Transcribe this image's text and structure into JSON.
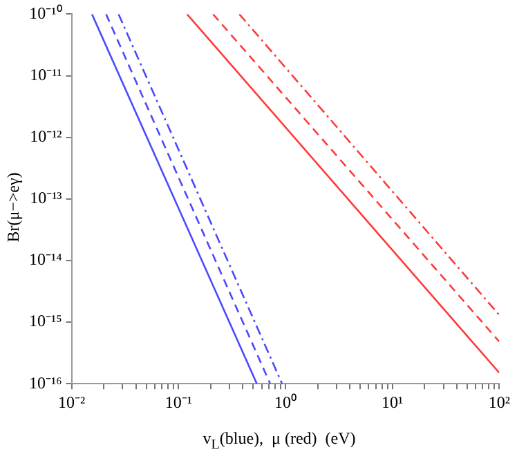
{
  "chart_data": {
    "type": "line",
    "xlabel": "v$_{L}$(blue),  μ (red)  (eV)",
    "ylabel": "Br(μ−>eγ)",
    "log": "xy",
    "grid": false,
    "legend": false,
    "marker": "none",
    "xlim": [
      0.01,
      100
    ],
    "ylim": [
      1e-16,
      1e-10
    ],
    "xticks": [
      {
        "value": 0.01,
        "label": "10⁻²"
      },
      {
        "value": 0.02,
        "label": null
      },
      {
        "value": 0.03,
        "label": null
      },
      {
        "value": 0.04,
        "label": null
      },
      {
        "value": 0.05,
        "label": null
      },
      {
        "value": 0.06,
        "label": null
      },
      {
        "value": 0.07,
        "label": null
      },
      {
        "value": 0.08,
        "label": null
      },
      {
        "value": 0.09,
        "label": null
      },
      {
        "value": 0.1,
        "label": "10⁻¹"
      },
      {
        "value": 0.2,
        "label": null
      },
      {
        "value": 0.3,
        "label": null
      },
      {
        "value": 0.4,
        "label": null
      },
      {
        "value": 0.5,
        "label": null
      },
      {
        "value": 0.6,
        "label": null
      },
      {
        "value": 0.7,
        "label": null
      },
      {
        "value": 0.8,
        "label": null
      },
      {
        "value": 0.9,
        "label": null
      },
      {
        "value": 1,
        "label": "10⁰"
      },
      {
        "value": 2,
        "label": null
      },
      {
        "value": 3,
        "label": null
      },
      {
        "value": 4,
        "label": null
      },
      {
        "value": 5,
        "label": null
      },
      {
        "value": 6,
        "label": null
      },
      {
        "value": 7,
        "label": null
      },
      {
        "value": 8,
        "label": null
      },
      {
        "value": 9,
        "label": null
      },
      {
        "value": 10,
        "label": "10¹"
      },
      {
        "value": 20,
        "label": null
      },
      {
        "value": 30,
        "label": null
      },
      {
        "value": 40,
        "label": null
      },
      {
        "value": 50,
        "label": null
      },
      {
        "value": 60,
        "label": null
      },
      {
        "value": 70,
        "label": null
      },
      {
        "value": 80,
        "label": null
      },
      {
        "value": 90,
        "label": null
      },
      {
        "value": 100,
        "label": "10²"
      }
    ],
    "yticks": [
      {
        "value": 1e-16,
        "label": "10⁻¹⁶"
      },
      {
        "value": 1e-15,
        "label": "10⁻¹⁵"
      },
      {
        "value": 1e-14,
        "label": "10⁻¹⁴"
      },
      {
        "value": 1e-13,
        "label": "10⁻¹³"
      },
      {
        "value": 1e-12,
        "label": "10⁻¹²"
      },
      {
        "value": 1e-11,
        "label": "10⁻¹¹"
      },
      {
        "value": 1e-10,
        "label": "10⁻¹⁰"
      }
    ],
    "series": [
      {
        "color": "#4a4aff",
        "line_style": "solid",
        "x": [
          0.0155,
          0.54
        ],
        "values": [
          1e-10,
          1e-16
        ]
      },
      {
        "color": "#4a4aff",
        "line_style": "dashed",
        "x": [
          0.021,
          0.72
        ],
        "values": [
          1e-10,
          1e-16
        ]
      },
      {
        "color": "#4a4aff",
        "line_style": "dotted",
        "x": [
          0.0275,
          0.93
        ],
        "values": [
          1e-10,
          1e-16
        ]
      },
      {
        "color": "#ff3a3a",
        "line_style": "solid",
        "x": [
          0.12,
          100
        ],
        "values": [
          1e-10,
          1.5e-16
        ]
      },
      {
        "color": "#ff3a3a",
        "line_style": "dashed",
        "x": [
          0.21,
          100
        ],
        "values": [
          1e-10,
          4.8e-16
        ]
      },
      {
        "color": "#ff3a3a",
        "line_style": "dotted",
        "x": [
          0.37,
          100
        ],
        "values": [
          1e-10,
          1.3e-15
        ]
      }
    ]
  }
}
